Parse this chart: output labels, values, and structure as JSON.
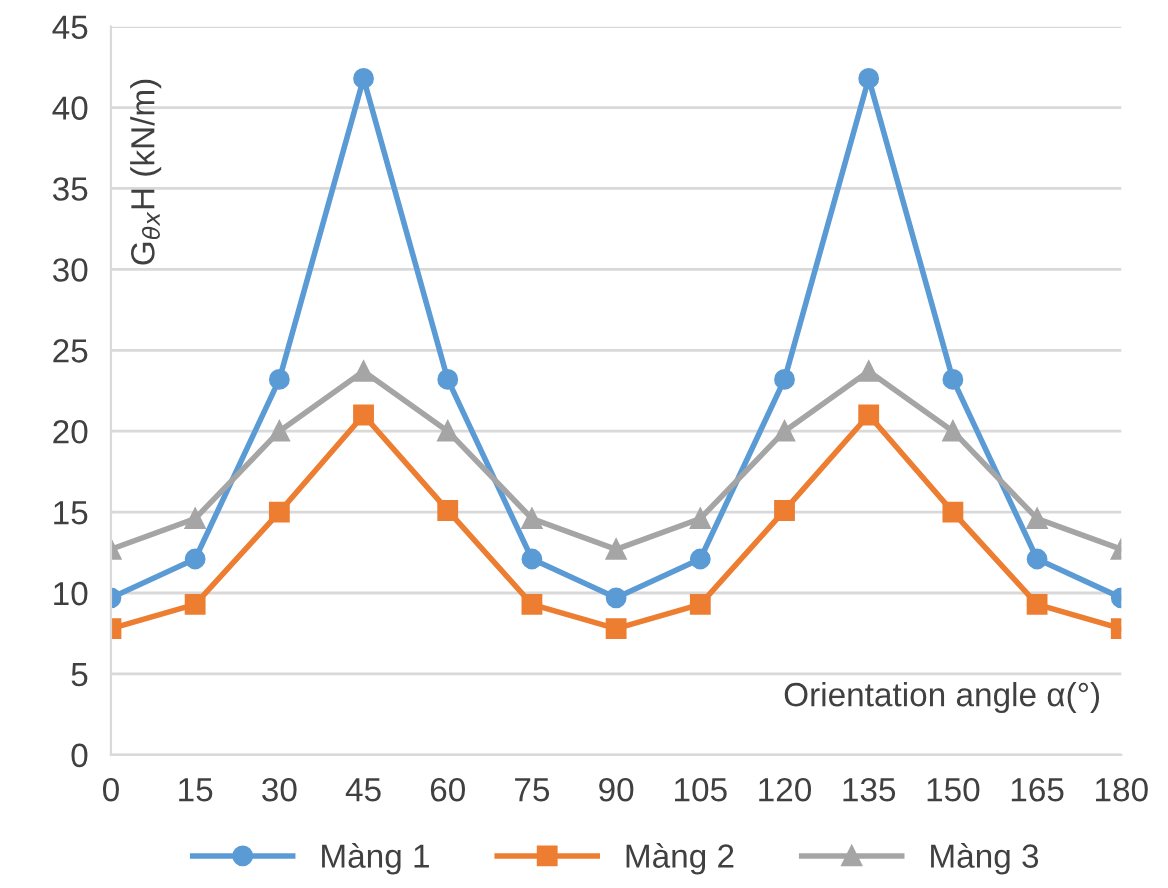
{
  "chart_data": {
    "type": "line",
    "xlabel": "Orientation angle α(°)",
    "ylabel": "G$_{θx}$H (kN/m)",
    "x": [
      0,
      15,
      30,
      45,
      60,
      75,
      90,
      105,
      120,
      135,
      150,
      165,
      180
    ],
    "xlim": [
      0,
      180
    ],
    "xticks": [
      0,
      15,
      30,
      45,
      60,
      75,
      90,
      105,
      120,
      135,
      150,
      165,
      180
    ],
    "ylim": [
      0,
      45
    ],
    "yticks": [
      0,
      5,
      10,
      15,
      20,
      25,
      30,
      35,
      40,
      45
    ],
    "grid": "y",
    "legend": "bottom",
    "line_style": "solid",
    "series": [
      {
        "name": "Màng 1",
        "color": "#5b9bd5",
        "marker": "circle",
        "values": [
          9.7,
          12.1,
          23.2,
          41.8,
          23.2,
          12.1,
          9.7,
          12.1,
          23.2,
          41.8,
          23.2,
          12.1,
          9.7
        ]
      },
      {
        "name": "Màng 2",
        "color": "#ed7d31",
        "marker": "square",
        "values": [
          7.8,
          9.3,
          15.0,
          21.0,
          15.1,
          9.3,
          7.8,
          9.3,
          15.1,
          21.0,
          15.0,
          9.3,
          7.8
        ]
      },
      {
        "name": "Màng 3",
        "color": "#a5a5a5",
        "marker": "triangle",
        "values": [
          12.7,
          14.6,
          20.0,
          23.7,
          20.0,
          14.6,
          12.7,
          14.6,
          20.0,
          23.7,
          20.0,
          14.6,
          12.7
        ]
      }
    ]
  }
}
